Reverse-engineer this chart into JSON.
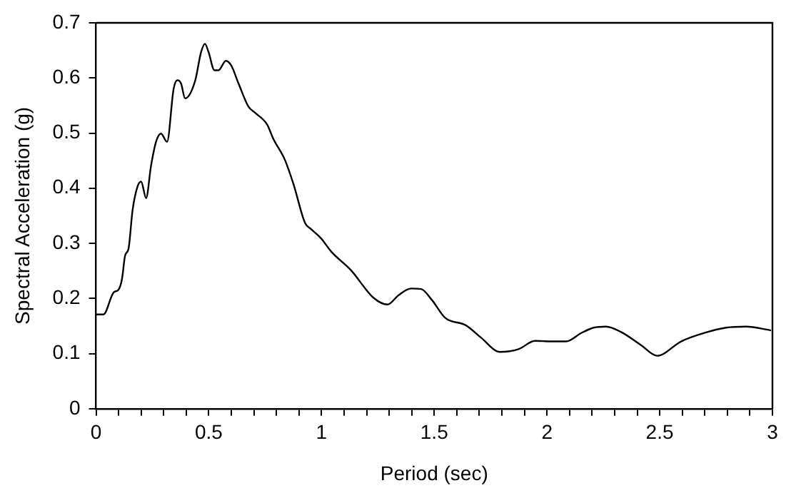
{
  "chart_data": {
    "type": "line",
    "xlabel": "Period (sec)",
    "ylabel": "Spectral Acceleration (g)",
    "series": [
      {
        "color": "#000000",
        "x": [
          0,
          0.033,
          0.078,
          0.1,
          0.115,
          0.129,
          0.144,
          0.162,
          0.184,
          0.2,
          0.222,
          0.244,
          0.266,
          0.288,
          0.315,
          0.344,
          0.361,
          0.377,
          0.395,
          0.439,
          0.466,
          0.483,
          0.499,
          0.525,
          0.543,
          0.576,
          0.599,
          0.632,
          0.676,
          0.705,
          0.758,
          0.787,
          0.838,
          0.876,
          0.927,
          0.953,
          0.998,
          1.043,
          1.131,
          1.231,
          1.293,
          1.342,
          1.397,
          1.442,
          1.49,
          1.548,
          1.641,
          1.707,
          1.792,
          1.874,
          1.947,
          2.018,
          2.085,
          2.151,
          2.207,
          2.262,
          2.329,
          2.418,
          2.488,
          2.595,
          2.695,
          2.794,
          2.883,
          2.994
        ],
        "values": [
          0.171,
          0.171,
          0.211,
          0.216,
          0.235,
          0.278,
          0.29,
          0.36,
          0.403,
          0.412,
          0.382,
          0.441,
          0.484,
          0.499,
          0.484,
          0.58,
          0.596,
          0.59,
          0.563,
          0.594,
          0.647,
          0.662,
          0.647,
          0.614,
          0.614,
          0.631,
          0.623,
          0.59,
          0.548,
          0.537,
          0.516,
          0.489,
          0.451,
          0.407,
          0.337,
          0.326,
          0.309,
          0.285,
          0.251,
          0.201,
          0.189,
          0.206,
          0.218,
          0.217,
          0.197,
          0.165,
          0.151,
          0.129,
          0.103,
          0.108,
          0.123,
          0.122,
          0.122,
          0.137,
          0.147,
          0.149,
          0.139,
          0.115,
          0.096,
          0.122,
          0.137,
          0.147,
          0.149,
          0.142
        ]
      }
    ],
    "xlim": [
      0,
      3
    ],
    "xticks": [
      0,
      {
        "value": 0.1,
        "label": null
      },
      {
        "value": 0.2,
        "label": null
      },
      {
        "value": 0.3,
        "label": null
      },
      {
        "value": 0.4,
        "label": null
      },
      0.5,
      {
        "value": 0.6,
        "label": null
      },
      {
        "value": 0.7,
        "label": null
      },
      {
        "value": 0.8,
        "label": null
      },
      {
        "value": 0.9,
        "label": null
      },
      1,
      {
        "value": 1.1,
        "label": null
      },
      {
        "value": 1.2,
        "label": null
      },
      {
        "value": 1.3,
        "label": null
      },
      {
        "value": 1.4,
        "label": null
      },
      1.5,
      {
        "value": 1.6,
        "label": null
      },
      {
        "value": 1.7,
        "label": null
      },
      {
        "value": 1.8,
        "label": null
      },
      {
        "value": 1.9,
        "label": null
      },
      2,
      {
        "value": 2.1,
        "label": null
      },
      {
        "value": 2.2,
        "label": null
      },
      {
        "value": 2.3,
        "label": null
      },
      {
        "value": 2.4,
        "label": null
      },
      2.5,
      {
        "value": 2.6,
        "label": null
      },
      {
        "value": 2.7,
        "label": null
      },
      {
        "value": 2.8,
        "label": null
      },
      {
        "value": 2.9,
        "label": null
      },
      3
    ],
    "ylim": [
      0,
      0.7
    ],
    "yticks": [
      0,
      0.1,
      0.2,
      0.3,
      0.4,
      0.5,
      0.6,
      0.7
    ],
    "grid": false,
    "legend": false,
    "marker": "none",
    "line_style": "solid"
  }
}
